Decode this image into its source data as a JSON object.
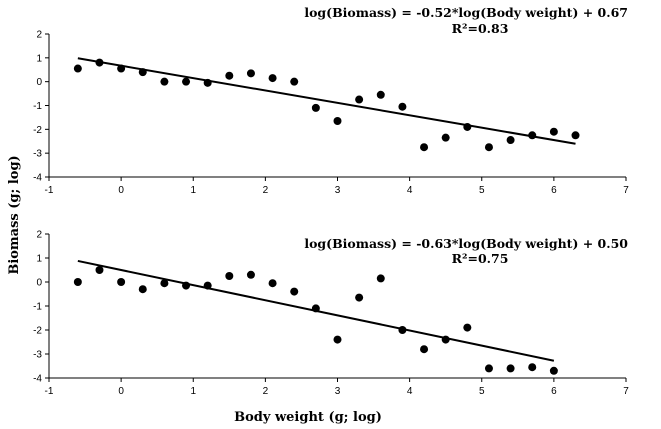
{
  "shared": {
    "xlabel": "Body weight (g; log)",
    "ylabel": "Biomass (g; log)"
  },
  "chart_data": [
    {
      "type": "scatter",
      "title": "",
      "equation": "log(Biomass) = -0.52*log(Body weight) + 0.67",
      "r2": "R²=0.83",
      "xlim": [
        -1,
        7
      ],
      "ylim": [
        -4,
        2
      ],
      "xticks": [
        -1,
        0,
        1,
        2,
        3,
        4,
        5,
        6,
        7
      ],
      "yticks": [
        -4,
        -3,
        -2,
        -1,
        0,
        1,
        2
      ],
      "grid": false,
      "points": [
        [
          -0.6,
          0.55
        ],
        [
          -0.3,
          0.8
        ],
        [
          0.0,
          0.55
        ],
        [
          0.3,
          0.4
        ],
        [
          0.6,
          0.0
        ],
        [
          0.9,
          0.0
        ],
        [
          1.2,
          -0.05
        ],
        [
          1.5,
          0.25
        ],
        [
          1.8,
          0.35
        ],
        [
          2.1,
          0.15
        ],
        [
          2.4,
          0.0
        ],
        [
          2.7,
          -1.1
        ],
        [
          3.0,
          -1.65
        ],
        [
          3.3,
          -0.75
        ],
        [
          3.6,
          -0.55
        ],
        [
          3.9,
          -1.05
        ],
        [
          4.2,
          -2.75
        ],
        [
          4.5,
          -2.35
        ],
        [
          4.8,
          -1.9
        ],
        [
          5.1,
          -2.75
        ],
        [
          5.4,
          -2.45
        ],
        [
          5.7,
          -2.25
        ],
        [
          6.0,
          -2.1
        ],
        [
          6.3,
          -2.25
        ]
      ],
      "trendline": {
        "slope": -0.52,
        "intercept": 0.67,
        "x_range": [
          -0.6,
          6.3
        ]
      }
    },
    {
      "type": "scatter",
      "title": "",
      "equation": "log(Biomass) = -0.63*log(Body weight) + 0.50",
      "r2": "R²=0.75",
      "xlim": [
        -1,
        7
      ],
      "ylim": [
        -4,
        2
      ],
      "xticks": [
        -1,
        0,
        1,
        2,
        3,
        4,
        5,
        6,
        7
      ],
      "yticks": [
        -4,
        -3,
        -2,
        -1,
        0,
        1,
        2
      ],
      "grid": false,
      "points": [
        [
          -0.6,
          0.0
        ],
        [
          -0.3,
          0.5
        ],
        [
          0.0,
          0.0
        ],
        [
          0.3,
          -0.3
        ],
        [
          0.6,
          -0.05
        ],
        [
          0.9,
          -0.15
        ],
        [
          1.2,
          -0.15
        ],
        [
          1.5,
          0.25
        ],
        [
          1.8,
          0.3
        ],
        [
          2.1,
          -0.05
        ],
        [
          2.4,
          -0.4
        ],
        [
          2.7,
          -1.1
        ],
        [
          3.0,
          -2.4
        ],
        [
          3.3,
          -0.65
        ],
        [
          3.6,
          0.15
        ],
        [
          3.9,
          -2.0
        ],
        [
          4.2,
          -2.8
        ],
        [
          4.5,
          -2.4
        ],
        [
          4.8,
          -1.9
        ],
        [
          5.1,
          -3.6
        ],
        [
          5.4,
          -3.6
        ],
        [
          5.7,
          -3.55
        ],
        [
          6.0,
          -3.7
        ]
      ],
      "trendline": {
        "slope": -0.63,
        "intercept": 0.5,
        "x_range": [
          -0.6,
          6.0
        ]
      }
    }
  ]
}
